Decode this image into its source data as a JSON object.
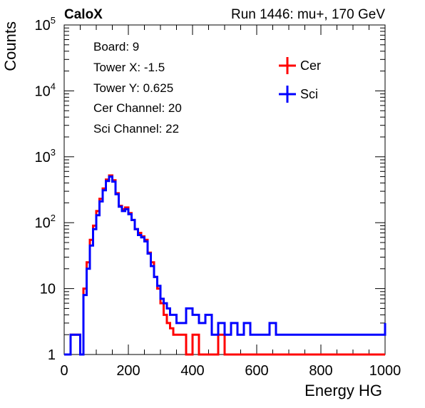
{
  "header": {
    "experiment": "CaloX",
    "run_info": "Run 1446: mu+, 170 GeV"
  },
  "info_box": [
    "Board: 9",
    "Tower X: -1.5",
    "Tower Y: 0.625",
    "Cer Channel: 20",
    "Sci Channel: 22"
  ],
  "chart_data": {
    "type": "line",
    "xlabel": "Energy HG",
    "ylabel": "Counts",
    "xlim": [
      0,
      1000
    ],
    "ylim": [
      1,
      100000
    ],
    "yscale": "log",
    "x_ticks": [
      "0",
      "200",
      "400",
      "600",
      "800",
      "1000"
    ],
    "y_ticks": [
      {
        "value": 1,
        "base": "1",
        "exp": ""
      },
      {
        "value": 10,
        "base": "10",
        "exp": ""
      },
      {
        "value": 100,
        "base": "10",
        "exp": "2"
      },
      {
        "value": 1000,
        "base": "10",
        "exp": "3"
      },
      {
        "value": 10000,
        "base": "10",
        "exp": "4"
      },
      {
        "value": 100000,
        "base": "10",
        "exp": "5"
      }
    ],
    "legend_position": "top-right",
    "series": [
      {
        "name": "Cer",
        "color": "#ff0000",
        "x": [
          0,
          20,
          40,
          50,
          60,
          70,
          80,
          90,
          100,
          110,
          120,
          130,
          140,
          150,
          160,
          170,
          180,
          190,
          200,
          210,
          220,
          230,
          240,
          250,
          260,
          270,
          280,
          290,
          300,
          310,
          320,
          330,
          340,
          350,
          360,
          380,
          400,
          420,
          440,
          460,
          480,
          500,
          520,
          540,
          560,
          580,
          600,
          620,
          640,
          660,
          680,
          700,
          720,
          740,
          760,
          780,
          800,
          820,
          840,
          860,
          880,
          900,
          920,
          940,
          960,
          980,
          1000
        ],
        "y": [
          1,
          2,
          2,
          1,
          10,
          25,
          55,
          90,
          150,
          230,
          330,
          450,
          520,
          440,
          280,
          180,
          160,
          170,
          140,
          110,
          80,
          70,
          62,
          55,
          35,
          25,
          15,
          10,
          6,
          4,
          3,
          2.5,
          2,
          2,
          2,
          1,
          2,
          1,
          1,
          1,
          2,
          1,
          1,
          1,
          1,
          1,
          1,
          1,
          1,
          1,
          1,
          1,
          1,
          1,
          1,
          1,
          1,
          1,
          1,
          1,
          1,
          1,
          1,
          1,
          1,
          1,
          1
        ]
      },
      {
        "name": "Sci",
        "color": "#0000ff",
        "x": [
          0,
          20,
          40,
          50,
          60,
          70,
          80,
          90,
          100,
          110,
          120,
          130,
          140,
          150,
          160,
          170,
          180,
          190,
          200,
          210,
          220,
          230,
          240,
          250,
          260,
          270,
          280,
          290,
          300,
          310,
          320,
          330,
          340,
          350,
          360,
          380,
          400,
          420,
          440,
          460,
          480,
          500,
          520,
          540,
          560,
          580,
          600,
          620,
          640,
          660,
          680,
          700,
          720,
          740,
          760,
          780,
          800,
          820,
          840,
          860,
          880,
          900,
          920,
          940,
          960,
          980,
          1000
        ],
        "y": [
          1,
          2,
          2,
          1,
          8,
          20,
          45,
          80,
          130,
          210,
          310,
          430,
          500,
          420,
          270,
          175,
          150,
          160,
          135,
          110,
          80,
          65,
          60,
          52,
          34,
          22,
          15,
          11,
          7,
          6,
          5,
          4,
          4,
          3,
          3,
          5,
          4,
          3,
          4,
          2,
          3,
          2,
          3,
          2,
          3,
          2,
          2,
          2,
          3,
          2,
          2,
          2,
          2,
          2,
          2,
          2,
          2,
          2,
          2,
          2,
          2,
          2,
          2,
          2,
          2,
          2,
          3
        ]
      }
    ]
  }
}
